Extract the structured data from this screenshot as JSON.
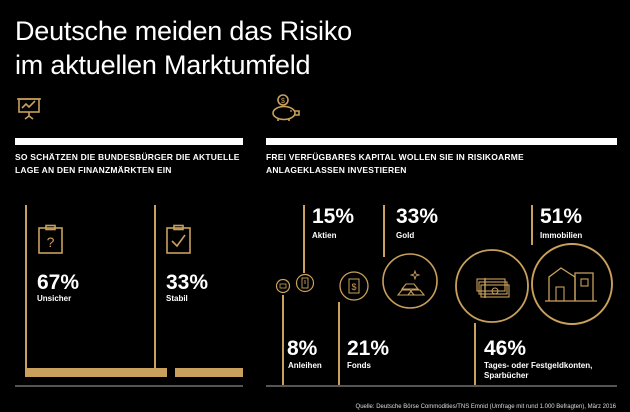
{
  "title": {
    "line1": "Deutsche meiden das Risiko",
    "line2": "im aktuellen Marktumfeld"
  },
  "left_panel": {
    "icon": "presentation-chart-icon",
    "heading_line1": "SO SCHÄTZEN DIE BUNDESBÜRGER DIE AKTUELLE",
    "heading_line2": "LAGE AN DEN FINANZMÄRKTEN EIN"
  },
  "right_panel": {
    "icon": "piggy-bank-icon",
    "heading_line1": "FREI VERFÜGBARES KAPITAL WOLLEN SIE IN RISIKOARME",
    "heading_line2": "ANLAGEKLASSEN INVESTIEREN"
  },
  "source": "Quelle: Deutsche Börse Commodities/TNS Emnid (Umfrage mit rund 1.000 Befragten), März 2016",
  "accent_color": "#c9a05c",
  "chart_data": [
    {
      "type": "bar",
      "unit": "%",
      "categories": [
        "Unsicher",
        "Stabil"
      ],
      "values": [
        67,
        33
      ],
      "value_labels": [
        "67%",
        "33%"
      ],
      "icons": [
        "clipboard-question-icon",
        "clipboard-check-icon"
      ]
    },
    {
      "type": "bar",
      "unit": "%",
      "categories": [
        "Anleihen",
        "Aktien",
        "Fonds",
        "Gold",
        "Tages- oder Festgeldkonten, Sparbücher",
        "Immobilien"
      ],
      "values": [
        8,
        15,
        21,
        33,
        46,
        51
      ],
      "value_labels": [
        "8%",
        "15%",
        "21%",
        "33%",
        "46%",
        "51%"
      ],
      "icons": [
        "bond-icon",
        "stock-certificate-icon",
        "fund-dollar-icon",
        "gold-bars-icon",
        "money-stack-icon",
        "house-icon"
      ]
    }
  ]
}
